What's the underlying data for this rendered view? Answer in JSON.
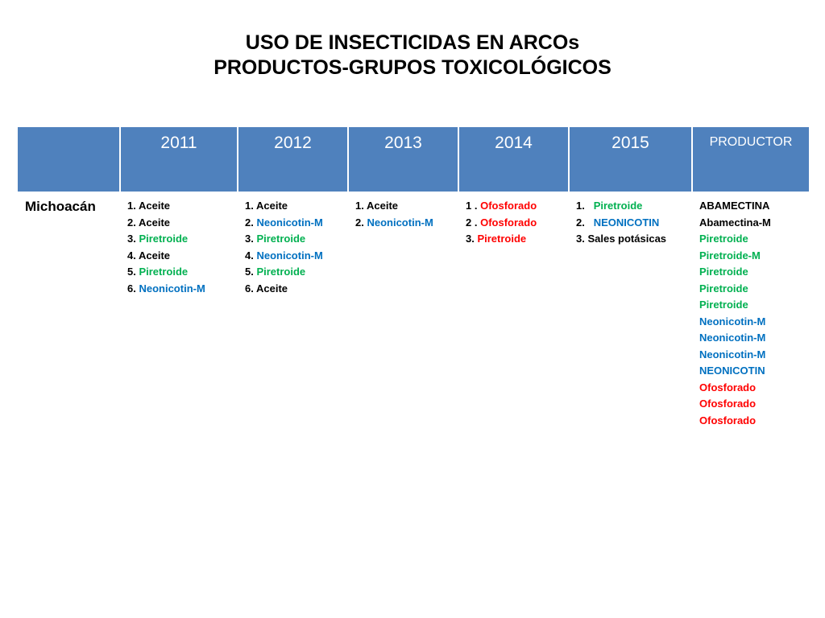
{
  "title": {
    "line1": "USO DE INSECTICIDAS EN ARCOs",
    "line2": "PRODUCTOS-GRUPOS TOXICOLÓGICOS"
  },
  "table": {
    "headers": [
      "",
      "2011",
      "2012",
      "2013",
      "2014",
      "2015",
      "PRODUCTOR"
    ],
    "rows": [
      {
        "label": "Michoacán",
        "y2011": [
          {
            "num": "1. ",
            "name": "Aceite",
            "color": "black"
          },
          {
            "num": "2. ",
            "name": "Aceite",
            "color": "black"
          },
          {
            "num": "3. ",
            "name": "Piretroide",
            "color": "green"
          },
          {
            "num": "4. ",
            "name": "Aceite",
            "color": "black"
          },
          {
            "num": "5. ",
            "name": "Piretroide",
            "color": "green"
          },
          {
            "num": "6. ",
            "name": "Neonicotin-M",
            "color": "blue"
          }
        ],
        "y2012": [
          {
            "num": "1. ",
            "name": "Aceite",
            "color": "black"
          },
          {
            "num": "2. ",
            "name": "Neonicotin-M",
            "color": "blue"
          },
          {
            "num": "3. ",
            "name": "Piretroide",
            "color": "green"
          },
          {
            "num": "4. ",
            "name": "Neonicotin-M",
            "color": "blue"
          },
          {
            "num": "5. ",
            "name": "Piretroide",
            "color": "green"
          },
          {
            "num": "6. ",
            "name": "Aceite",
            "color": "black"
          }
        ],
        "y2013": [
          {
            "num": "1. ",
            "name": "Aceite",
            "color": "black"
          },
          {
            "num": "2. ",
            "name": "Neonicotin-M",
            "color": "blue"
          }
        ],
        "y2014": [
          {
            "num": "1 . ",
            "name": "Ofosforado",
            "color": "red",
            "numColor": "red"
          },
          {
            "num": "2 . ",
            "name": "Ofosforado",
            "color": "red",
            "numColor": "red"
          },
          {
            "num": "3. ",
            "name": "Piretroide",
            "color": "red",
            "numColor": "red"
          }
        ],
        "y2015": [
          {
            "num": "1.   ",
            "name": "Piretroide",
            "color": "green",
            "numColor": "green"
          },
          {
            "num": "2.   ",
            "name": "NEONICOTIN",
            "color": "blue",
            "numColor": "blue"
          },
          {
            "num": "3. ",
            "name": "Sales potásicas",
            "color": "black"
          }
        ],
        "productor": [
          {
            "name": "ABAMECTINA",
            "color": "black"
          },
          {
            "name": "Abamectina-M",
            "color": "black"
          },
          {
            "name": "Piretroide",
            "color": "green"
          },
          {
            "name": "Piretroide-M",
            "color": "green"
          },
          {
            "name": "Piretroide",
            "color": "green"
          },
          {
            "name": "Piretroide",
            "color": "green"
          },
          {
            "name": "Piretroide",
            "color": "green"
          },
          {
            "name": "Neonicotin-M",
            "color": "blue"
          },
          {
            "name": "Neonicotin-M",
            "color": "blue"
          },
          {
            "name": "Neonicotin-M",
            "color": "blue"
          },
          {
            "name": "NEONICOTIN",
            "color": "blue"
          },
          {
            "name": "Ofosforado",
            "color": "red"
          },
          {
            "name": "Ofosforado",
            "color": "red"
          },
          {
            "name": "Ofosforado",
            "color": "red"
          }
        ]
      }
    ]
  },
  "colors": {
    "header_bg": "#4f81bd",
    "green": "#00b050",
    "blue": "#0070c0",
    "red": "#ff0000",
    "black": "#000000"
  }
}
